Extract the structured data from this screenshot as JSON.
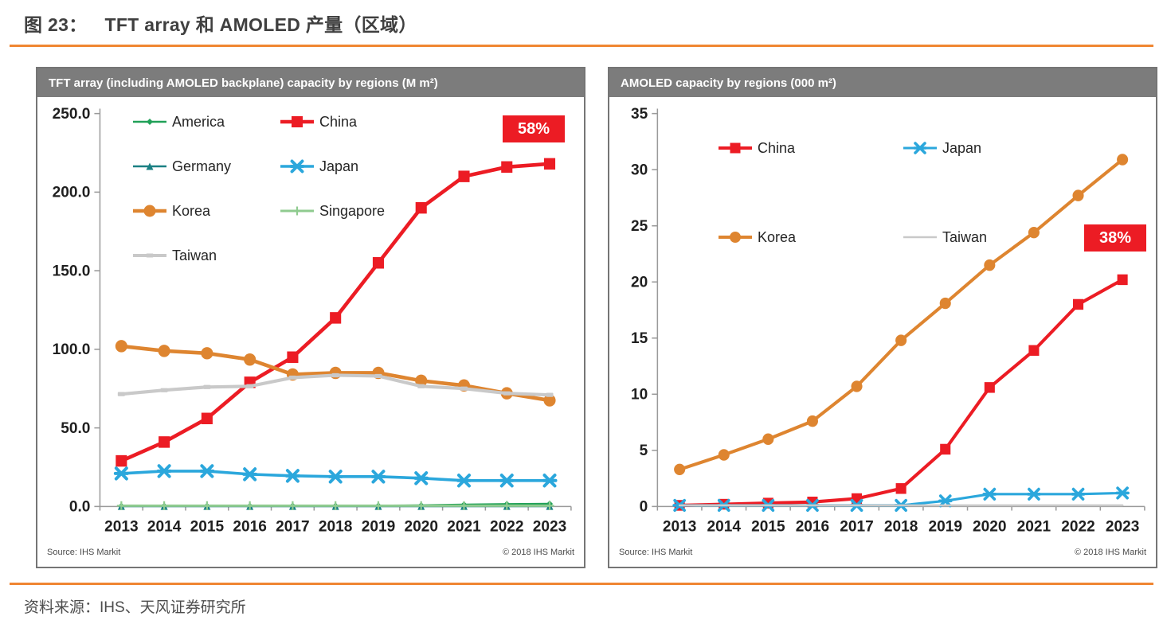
{
  "page": {
    "figure_label": "图 23：",
    "figure_title": "TFT array 和 AMOLED 产量（区域）",
    "caption": "资料来源：IHS、天风证券研究所",
    "accent_color": "#F08632"
  },
  "chart_data": [
    {
      "type": "line",
      "title": "TFT array (including AMOLED backplane) capacity by regions (M m²)",
      "source_left": "Source: IHS Markit",
      "source_right": "© 2018 IHS Markit",
      "badge": "58%",
      "badge_color": "#EC1C24",
      "grid": false,
      "legend_position": "inside-top-left",
      "legend_columns": 2,
      "legend_order": [
        "America",
        "China",
        "Germany",
        "Japan",
        "Korea",
        "Singapore",
        "Taiwan"
      ],
      "categories": [
        "2013",
        "2014",
        "2015",
        "2016",
        "2017",
        "2018",
        "2019",
        "2020",
        "2021",
        "2022",
        "2023"
      ],
      "ylim": [
        0,
        250
      ],
      "yticks": [
        "0.0",
        "50.0",
        "100.0",
        "150.0",
        "200.0",
        "250.0"
      ],
      "series": [
        {
          "name": "America",
          "color": "#21A158",
          "marker": "diamond",
          "marker_size": 8,
          "line_width": 2.5,
          "values": [
            0.3,
            0.3,
            0.3,
            0.3,
            0.4,
            0.4,
            0.5,
            0.7,
            1.2,
            1.5,
            1.7
          ]
        },
        {
          "name": "China",
          "color": "#EC1C24",
          "marker": "square",
          "marker_size": 14,
          "line_width": 4.5,
          "values": [
            29,
            41,
            56,
            79,
            95,
            120,
            155,
            190,
            210,
            216,
            218
          ]
        },
        {
          "name": "Germany",
          "color": "#1A8083",
          "marker": "triangle",
          "marker_size": 9,
          "line_width": 2.5,
          "values": [
            0.2,
            0.2,
            0.2,
            0.2,
            0.2,
            0.2,
            0.2,
            0.2,
            0.2,
            0.2,
            0.2
          ]
        },
        {
          "name": "Japan",
          "color": "#2BA7DC",
          "marker": "x",
          "marker_size": 13,
          "line_width": 3.5,
          "values": [
            21,
            22.5,
            22.5,
            20.5,
            19.5,
            19,
            19,
            18,
            16.5,
            16.5,
            16.5
          ]
        },
        {
          "name": "Korea",
          "color": "#DE8530",
          "marker": "circle",
          "marker_size": 15,
          "line_width": 4.5,
          "values": [
            102,
            99,
            97.5,
            93.5,
            84,
            85,
            85,
            80,
            77,
            72,
            67.5
          ]
        },
        {
          "name": "Singapore",
          "color": "#8FCB8F",
          "marker": "plus",
          "marker_size": 11,
          "line_width": 3,
          "values": [
            0.5,
            0.5,
            0.5,
            0.5,
            0.5,
            0.5,
            0.5,
            0.5,
            0.5,
            0.5,
            0.5
          ]
        },
        {
          "name": "Taiwan",
          "color": "#C9C9C9",
          "marker": "dash",
          "marker_size": 9,
          "line_width": 4,
          "values": [
            71.5,
            74,
            76,
            76.5,
            82,
            83.5,
            83,
            76.5,
            75,
            72,
            71
          ]
        }
      ]
    },
    {
      "type": "line",
      "title": "AMOLED capacity by regions (000 m²)",
      "source_left": "Source: IHS Markit",
      "source_right": "© 2018 IHS Markit",
      "badge": "38%",
      "badge_color": "#EC1C24",
      "grid": false,
      "legend_position": "inside-top-left",
      "legend_columns": 2,
      "legend_order": [
        "China",
        "Japan",
        "Korea",
        "Taiwan"
      ],
      "categories": [
        "2013",
        "2014",
        "2015",
        "2016",
        "2017",
        "2018",
        "2019",
        "2020",
        "2021",
        "2022",
        "2023"
      ],
      "ylim": [
        0,
        35
      ],
      "yticks": [
        "0",
        "5",
        "10",
        "15",
        "20",
        "25",
        "30",
        "35"
      ],
      "series": [
        {
          "name": "China",
          "color": "#EC1C24",
          "marker": "square",
          "marker_size": 13,
          "line_width": 4,
          "values": [
            0.1,
            0.2,
            0.3,
            0.4,
            0.7,
            1.6,
            5.1,
            10.6,
            13.9,
            18.0,
            20.2
          ]
        },
        {
          "name": "Japan",
          "color": "#2BA7DC",
          "marker": "x",
          "marker_size": 12,
          "line_width": 3,
          "values": [
            0.1,
            0.1,
            0.1,
            0.1,
            0.1,
            0.1,
            0.5,
            1.1,
            1.1,
            1.1,
            1.2
          ]
        },
        {
          "name": "Korea",
          "color": "#DE8530",
          "marker": "circle",
          "marker_size": 14,
          "line_width": 4,
          "values": [
            3.3,
            4.6,
            6.0,
            7.6,
            10.7,
            14.8,
            18.1,
            21.5,
            24.4,
            27.7,
            30.9
          ]
        },
        {
          "name": "Taiwan",
          "color": "#C9C9C9",
          "marker": "none",
          "marker_size": 0,
          "line_width": 2.5,
          "values": [
            0.1,
            0.1,
            0.1,
            0.1,
            0.1,
            0.1,
            0.1,
            0.1,
            0.1,
            0.1,
            0.1
          ]
        }
      ]
    }
  ]
}
